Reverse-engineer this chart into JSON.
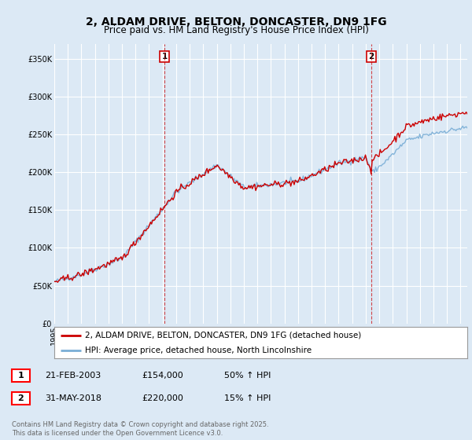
{
  "title": "2, ALDAM DRIVE, BELTON, DONCASTER, DN9 1FG",
  "subtitle": "Price paid vs. HM Land Registry's House Price Index (HPI)",
  "xlim_years": [
    1995,
    2025.5
  ],
  "ylim": [
    0,
    370000
  ],
  "yticks": [
    0,
    50000,
    100000,
    150000,
    200000,
    250000,
    300000,
    350000
  ],
  "ytick_labels": [
    "£0",
    "£50K",
    "£100K",
    "£150K",
    "£200K",
    "£250K",
    "£300K",
    "£350K"
  ],
  "background_color": "#dce9f5",
  "plot_bg_color": "#dce9f5",
  "grid_color": "#ffffff",
  "property_color": "#cc0000",
  "hpi_color": "#7aaed6",
  "sale1_year": 2003.13,
  "sale1_price": 154000,
  "sale1_label": "1",
  "sale2_year": 2018.42,
  "sale2_price": 220000,
  "sale2_label": "2",
  "legend_property": "2, ALDAM DRIVE, BELTON, DONCASTER, DN9 1FG (detached house)",
  "legend_hpi": "HPI: Average price, detached house, North Lincolnshire",
  "table_row1": [
    "1",
    "21-FEB-2003",
    "£154,000",
    "50% ↑ HPI"
  ],
  "table_row2": [
    "2",
    "31-MAY-2018",
    "£220,000",
    "15% ↑ HPI"
  ],
  "footer": "Contains HM Land Registry data © Crown copyright and database right 2025.\nThis data is licensed under the Open Government Licence v3.0.",
  "title_fontsize": 10,
  "subtitle_fontsize": 8.5,
  "tick_fontsize": 7,
  "legend_fontsize": 7.5,
  "table_fontsize": 8,
  "footer_fontsize": 6
}
